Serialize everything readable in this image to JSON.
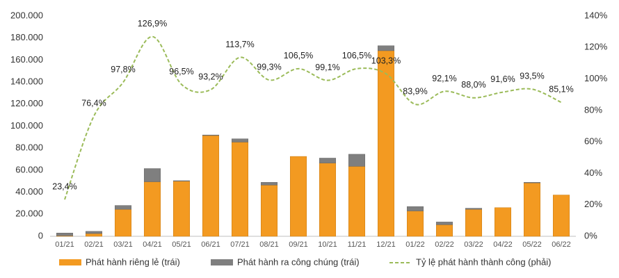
{
  "chart_data": {
    "type": "bar-line",
    "categories": [
      "01/21",
      "02/21",
      "03/21",
      "04/21",
      "05/21",
      "06/21",
      "07/21",
      "08/21",
      "09/21",
      "10/21",
      "11/21",
      "12/21",
      "01/22",
      "02/22",
      "03/22",
      "04/22",
      "05/22",
      "06/22"
    ],
    "series": [
      {
        "name": "Phát hành riêng lẻ (trái)",
        "color": "#f39a21",
        "type": "bar",
        "values": [
          500,
          2500,
          24500,
          49500,
          50000,
          91500,
          85500,
          46500,
          72500,
          66500,
          63500,
          168500,
          23000,
          10500,
          24500,
          26000,
          48500,
          37500
        ]
      },
      {
        "name": "Phát hành ra công chúng (trái)",
        "color": "#7f7f7f",
        "type": "bar",
        "values": [
          2500,
          2000,
          3500,
          12000,
          500,
          500,
          3000,
          2500,
          0,
          4500,
          11000,
          4500,
          4000,
          2500,
          1000,
          0,
          500,
          0
        ]
      },
      {
        "name": "Tỷ lệ phát hành thành công (phải)",
        "color": "#9bbb59",
        "type": "line",
        "axis": "y2",
        "values": [
          23.4,
          76.4,
          97.8,
          126.9,
          96.5,
          93.2,
          113.7,
          99.3,
          106.5,
          99.1,
          106.5,
          103.3,
          83.9,
          92.1,
          88.0,
          91.6,
          93.5,
          85.1
        ],
        "value_labels": [
          "23,4%",
          "76,4%",
          "97,8%",
          "126,9%",
          "96,5%",
          "93,2%",
          "113,7%",
          "99,3%",
          "106,5%",
          "99,1%",
          "106,5%",
          "103,3%",
          "83,9%",
          "92,1%",
          "88,0%",
          "91,6%",
          "93,5%",
          "85,1%"
        ]
      }
    ],
    "ylim": [
      0,
      200000
    ],
    "yticks": [
      {
        "value": 0,
        "label": "0"
      },
      {
        "value": 20000,
        "label": "20.000"
      },
      {
        "value": 40000,
        "label": "40.000"
      },
      {
        "value": 60000,
        "label": "60.000"
      },
      {
        "value": 80000,
        "label": "80.000"
      },
      {
        "value": 100000,
        "label": "100.000"
      },
      {
        "value": 120000,
        "label": "120.000"
      },
      {
        "value": 140000,
        "label": "140.000"
      },
      {
        "value": 160000,
        "label": "160.000"
      },
      {
        "value": 180000,
        "label": "180.000"
      },
      {
        "value": 200000,
        "label": "200.000"
      }
    ],
    "y2lim": [
      0,
      140
    ],
    "y2ticks": [
      {
        "value": 0,
        "label": "0%"
      },
      {
        "value": 20,
        "label": "20%"
      },
      {
        "value": 40,
        "label": "40%"
      },
      {
        "value": 60,
        "label": "60%"
      },
      {
        "value": 80,
        "label": "80%"
      },
      {
        "value": 100,
        "label": "100%"
      },
      {
        "value": 120,
        "label": "120%"
      },
      {
        "value": 140,
        "label": "140%"
      }
    ],
    "grid": false,
    "legend": "bottom"
  }
}
